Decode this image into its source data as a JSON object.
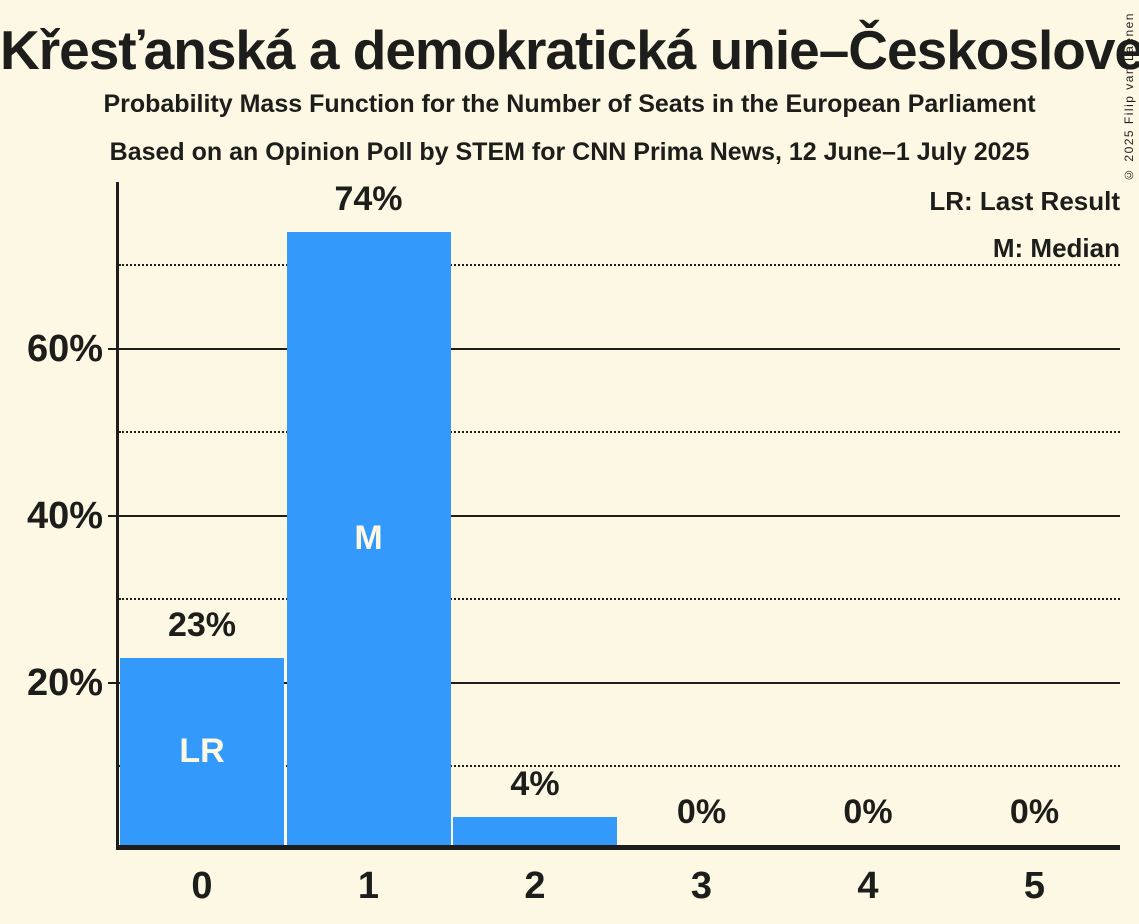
{
  "page": {
    "background_color": "#FDF8E3",
    "ink_color": "#1D1D1B"
  },
  "header": {
    "title": "Křesťanská a demokratická unie–Československá strana lidová",
    "subtitle": "Probability Mass Function for the Number of Seats in the European Parliament",
    "poll_details": "Based on an Opinion Poll by STEM for CNN Prima News, 12 June–1 July 2025"
  },
  "legend": {
    "last_result": "LR: Last Result",
    "median": "M: Median"
  },
  "copyright": "© 2025 Filip van Laenen",
  "chart_data": {
    "type": "bar",
    "title": "Probability Mass Function for the Number of Seats in the European Parliament",
    "categories": [
      "0",
      "1",
      "2",
      "3",
      "4",
      "5"
    ],
    "values": [
      23,
      74,
      4,
      0,
      0,
      0
    ],
    "value_labels": [
      "23%",
      "74%",
      "4%",
      "0%",
      "0%",
      "0%"
    ],
    "bar_annotations": [
      "LR",
      "M",
      null,
      null,
      null,
      null
    ],
    "ylim": [
      0,
      80
    ],
    "yticks_solid": [
      {
        "value": 20,
        "label": "20%"
      },
      {
        "value": 40,
        "label": "40%"
      },
      {
        "value": 60,
        "label": "60%"
      }
    ],
    "gridlines_dotted": [
      10,
      30,
      50,
      70
    ],
    "bar_color": "#3399FA",
    "annotation_color": "#FDF8E3",
    "grid": "horizontal",
    "legend_position": "top-right"
  }
}
